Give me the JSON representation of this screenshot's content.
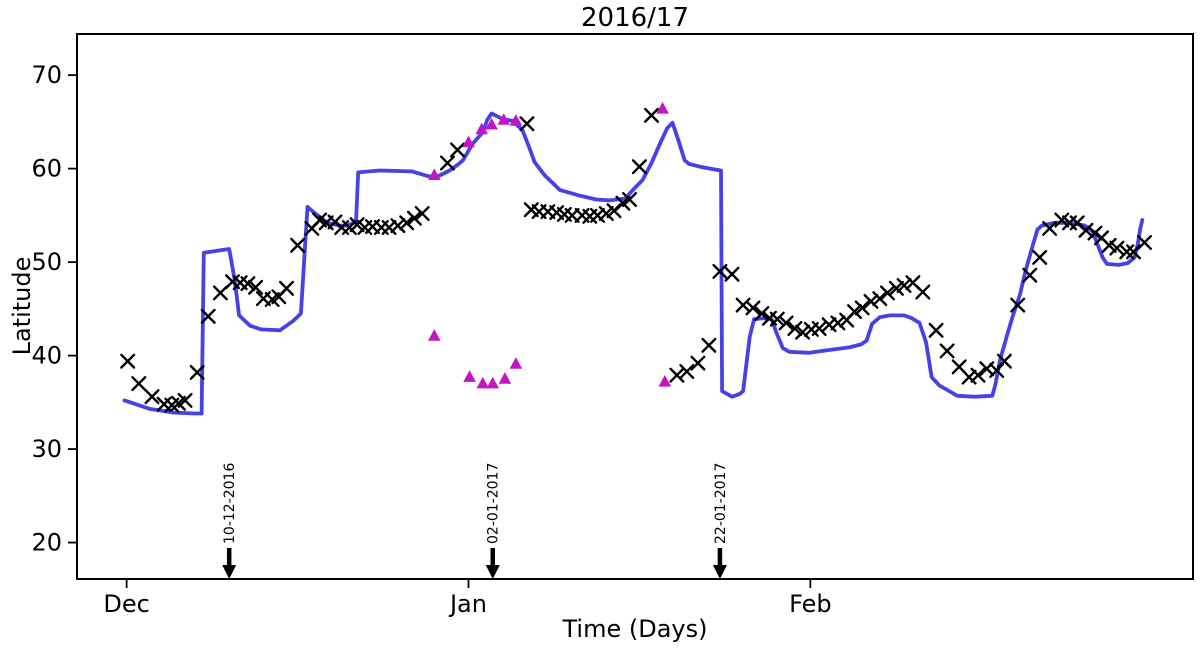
{
  "figure": {
    "title": "2016/17",
    "xlabel": "Time (Days)",
    "ylabel": "Latitude"
  },
  "chart_data": {
    "type": "line",
    "title": "2016/17",
    "xlabel": "Time (Days)",
    "ylabel": "Latitude",
    "x_unit": "days since 2016-12-01",
    "xlim": [
      -4.5,
      96.7
    ],
    "ylim": [
      16.1,
      74.4
    ],
    "grid": false,
    "legend": "none",
    "xticks": [
      {
        "value": 0,
        "label": "Dec"
      },
      {
        "value": 31,
        "label": "Jan"
      },
      {
        "value": 62,
        "label": "Feb"
      }
    ],
    "yticks": [
      20,
      30,
      40,
      50,
      60,
      70
    ],
    "series": [
      {
        "name": "model-line",
        "type": "line",
        "color": "#4741e8",
        "points": [
          [
            -0.2,
            35.2
          ],
          [
            2.1,
            34.3
          ],
          [
            4.3,
            33.9
          ],
          [
            6.3,
            33.8
          ],
          [
            6.8,
            33.8
          ],
          [
            7.0,
            51.0
          ],
          [
            9.3,
            51.4
          ],
          [
            9.8,
            48.1
          ],
          [
            10.2,
            44.3
          ],
          [
            11.2,
            43.2
          ],
          [
            12.2,
            42.8
          ],
          [
            13.9,
            42.7
          ],
          [
            15.1,
            43.7
          ],
          [
            15.8,
            44.5
          ],
          [
            16.4,
            55.9
          ],
          [
            17.0,
            55.3
          ],
          [
            18.2,
            54.2
          ],
          [
            19.3,
            53.9
          ],
          [
            20.0,
            53.9
          ],
          [
            20.8,
            54.3
          ],
          [
            21.0,
            59.6
          ],
          [
            22.9,
            59.8
          ],
          [
            25.9,
            59.7
          ],
          [
            27.3,
            59.2
          ],
          [
            28.1,
            59.1
          ],
          [
            29.3,
            59.8
          ],
          [
            30.0,
            60.4
          ],
          [
            30.5,
            60.9
          ],
          [
            31.4,
            62.7
          ],
          [
            32.3,
            63.9
          ],
          [
            32.7,
            65.2
          ],
          [
            33.1,
            65.9
          ],
          [
            34.1,
            65.3
          ],
          [
            35.0,
            65.1
          ],
          [
            35.9,
            64.1
          ],
          [
            36.5,
            62.3
          ],
          [
            37.0,
            60.7
          ],
          [
            37.9,
            59.3
          ],
          [
            39.3,
            57.7
          ],
          [
            41.1,
            57.1
          ],
          [
            42.6,
            56.7
          ],
          [
            43.8,
            56.6
          ],
          [
            45.2,
            56.8
          ],
          [
            45.9,
            57.7
          ],
          [
            46.8,
            58.8
          ],
          [
            47.6,
            60.6
          ],
          [
            48.3,
            62.5
          ],
          [
            49.0,
            64.3
          ],
          [
            49.5,
            64.9
          ],
          [
            50.1,
            62.8
          ],
          [
            50.6,
            60.9
          ],
          [
            51.0,
            60.5
          ],
          [
            52.0,
            60.2
          ],
          [
            52.9,
            60.0
          ],
          [
            53.9,
            59.8
          ],
          [
            54.0,
            36.2
          ],
          [
            54.9,
            35.6
          ],
          [
            55.6,
            35.9
          ],
          [
            55.9,
            36.2
          ],
          [
            56.5,
            42.0
          ],
          [
            56.9,
            43.9
          ],
          [
            57.8,
            44.0
          ],
          [
            58.5,
            43.9
          ],
          [
            58.9,
            42.5
          ],
          [
            59.5,
            40.8
          ],
          [
            60.1,
            40.4
          ],
          [
            61.9,
            40.3
          ],
          [
            63.7,
            40.6
          ],
          [
            65.6,
            40.9
          ],
          [
            66.6,
            41.2
          ],
          [
            67.1,
            41.6
          ],
          [
            67.6,
            43.4
          ],
          [
            68.3,
            44.1
          ],
          [
            69.2,
            44.3
          ],
          [
            70.5,
            44.3
          ],
          [
            71.2,
            44.0
          ],
          [
            71.9,
            43.5
          ],
          [
            72.5,
            41.4
          ],
          [
            73.0,
            37.7
          ],
          [
            73.7,
            36.8
          ],
          [
            74.6,
            36.2
          ],
          [
            75.3,
            35.7
          ],
          [
            76.9,
            35.6
          ],
          [
            78.5,
            35.7
          ],
          [
            78.8,
            37.0
          ],
          [
            79.2,
            39.5
          ],
          [
            79.8,
            42.0
          ],
          [
            80.3,
            44.0
          ],
          [
            81.0,
            46.5
          ],
          [
            81.5,
            49.0
          ],
          [
            82.1,
            51.5
          ],
          [
            82.6,
            53.5
          ],
          [
            83.0,
            53.9
          ],
          [
            84.1,
            54.2
          ],
          [
            85.5,
            54.2
          ],
          [
            86.9,
            53.9
          ],
          [
            87.6,
            53.3
          ],
          [
            88.0,
            52.0
          ],
          [
            88.5,
            50.5
          ],
          [
            88.9,
            49.8
          ],
          [
            90.0,
            49.7
          ],
          [
            90.8,
            49.9
          ],
          [
            91.4,
            50.5
          ],
          [
            91.7,
            52.0
          ],
          [
            91.9,
            53.5
          ],
          [
            92.1,
            54.5
          ]
        ]
      },
      {
        "name": "observations-x",
        "type": "scatter",
        "marker": "x",
        "color": "#000000",
        "points": [
          [
            0.1,
            39.4
          ],
          [
            1.1,
            37.0
          ],
          [
            2.3,
            35.6
          ],
          [
            3.4,
            34.8
          ],
          [
            4.1,
            34.7
          ],
          [
            4.7,
            34.9
          ],
          [
            5.3,
            35.2
          ],
          [
            6.4,
            38.2
          ],
          [
            7.4,
            44.2
          ],
          [
            8.5,
            46.7
          ],
          [
            9.6,
            47.9
          ],
          [
            10.3,
            47.8
          ],
          [
            11.0,
            47.7
          ],
          [
            11.7,
            47.3
          ],
          [
            12.4,
            46.1
          ],
          [
            13.2,
            46.0
          ],
          [
            13.8,
            46.3
          ],
          [
            14.5,
            47.2
          ],
          [
            15.5,
            51.8
          ],
          [
            16.8,
            53.6
          ],
          [
            17.5,
            54.5
          ],
          [
            18.1,
            54.2
          ],
          [
            18.9,
            54.3
          ],
          [
            19.5,
            53.7
          ],
          [
            20.2,
            53.7
          ],
          [
            20.9,
            54.0
          ],
          [
            21.6,
            53.7
          ],
          [
            22.3,
            53.8
          ],
          [
            23.1,
            53.7
          ],
          [
            23.8,
            53.7
          ],
          [
            24.6,
            53.9
          ],
          [
            25.4,
            54.2
          ],
          [
            26.1,
            54.7
          ],
          [
            26.8,
            55.2
          ],
          [
            29.1,
            60.6
          ],
          [
            30.0,
            62.0
          ],
          [
            36.3,
            64.8
          ],
          [
            36.7,
            55.6
          ],
          [
            37.4,
            55.4
          ],
          [
            38.2,
            55.4
          ],
          [
            39.0,
            55.3
          ],
          [
            39.7,
            55.1
          ],
          [
            40.4,
            55.0
          ],
          [
            41.3,
            55.0
          ],
          [
            42.0,
            54.9
          ],
          [
            42.7,
            55.0
          ],
          [
            43.5,
            55.2
          ],
          [
            44.2,
            55.5
          ],
          [
            45.0,
            56.3
          ],
          [
            45.6,
            56.7
          ],
          [
            46.5,
            60.2
          ],
          [
            47.6,
            65.7
          ],
          [
            49.9,
            37.9
          ],
          [
            50.8,
            38.3
          ],
          [
            51.8,
            39.2
          ],
          [
            52.8,
            41.1
          ],
          [
            53.8,
            49.0
          ],
          [
            54.9,
            48.7
          ],
          [
            55.9,
            45.4
          ],
          [
            56.8,
            45.1
          ],
          [
            57.6,
            44.5
          ],
          [
            58.3,
            44.0
          ],
          [
            59.0,
            43.9
          ],
          [
            59.8,
            43.5
          ],
          [
            60.6,
            42.9
          ],
          [
            61.3,
            42.5
          ],
          [
            62.1,
            42.8
          ],
          [
            62.8,
            42.9
          ],
          [
            63.7,
            43.3
          ],
          [
            64.5,
            43.5
          ],
          [
            65.3,
            43.8
          ],
          [
            66.0,
            44.7
          ],
          [
            66.7,
            45.1
          ],
          [
            67.5,
            45.8
          ],
          [
            68.3,
            46.1
          ],
          [
            69.0,
            46.7
          ],
          [
            69.8,
            47.2
          ],
          [
            70.5,
            47.5
          ],
          [
            71.3,
            47.8
          ],
          [
            72.2,
            46.8
          ],
          [
            73.4,
            42.7
          ],
          [
            74.4,
            40.5
          ],
          [
            75.5,
            38.8
          ],
          [
            76.4,
            37.7
          ],
          [
            77.2,
            37.9
          ],
          [
            78.0,
            38.6
          ],
          [
            78.9,
            38.4
          ],
          [
            79.6,
            39.4
          ],
          [
            80.8,
            45.4
          ],
          [
            81.9,
            48.6
          ],
          [
            82.8,
            50.5
          ],
          [
            83.7,
            53.6
          ],
          [
            84.8,
            54.5
          ],
          [
            85.5,
            54.2
          ],
          [
            86.2,
            54.2
          ],
          [
            87.0,
            53.4
          ],
          [
            87.8,
            53.1
          ],
          [
            88.4,
            52.6
          ],
          [
            89.1,
            51.8
          ],
          [
            89.8,
            51.5
          ],
          [
            90.7,
            51.1
          ],
          [
            91.3,
            51.1
          ],
          [
            92.3,
            52.1
          ]
        ]
      },
      {
        "name": "flagged-triangles",
        "type": "scatter",
        "marker": "triangle-up",
        "color": "#c414c4",
        "points": [
          [
            27.9,
            59.3
          ],
          [
            31.0,
            62.8
          ],
          [
            32.2,
            64.2
          ],
          [
            33.1,
            64.7
          ],
          [
            34.2,
            65.2
          ],
          [
            35.3,
            65.1
          ],
          [
            48.6,
            66.4
          ],
          [
            27.9,
            42.1
          ],
          [
            31.1,
            37.7
          ],
          [
            32.3,
            37.0
          ],
          [
            33.2,
            37.0
          ],
          [
            34.3,
            37.5
          ],
          [
            35.3,
            39.1
          ],
          [
            48.8,
            37.2
          ]
        ]
      }
    ],
    "annotations": [
      {
        "label": "10-12-2016",
        "day": 9.3
      },
      {
        "label": "02-01-2017",
        "day": 33.2
      },
      {
        "label": "22-01-2017",
        "day": 53.8
      }
    ]
  },
  "colors": {
    "line": "#4741e8",
    "observation_marker": "#000000",
    "triangle_marker": "#c414c4",
    "spine": "#000000",
    "background": "#ffffff"
  }
}
